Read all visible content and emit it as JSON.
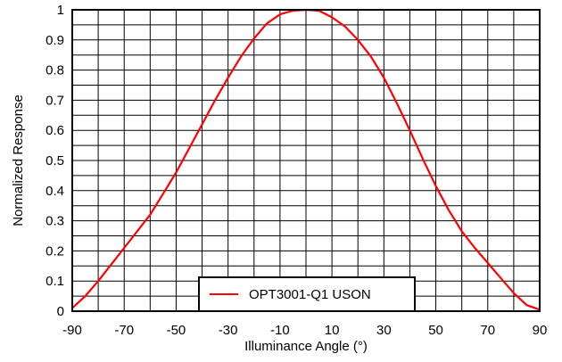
{
  "chart_data": {
    "type": "line",
    "xlabel": "Illuminance Angle (°)",
    "ylabel": "Normalized Response",
    "xlim": [
      -90,
      90
    ],
    "ylim": [
      0,
      1
    ],
    "grid": true,
    "x_ticks": [
      "-90",
      "-70",
      "-50",
      "-30",
      "-10",
      "10",
      "30",
      "50",
      "70",
      "90"
    ],
    "y_ticks": [
      "0",
      "0.1",
      "0.2",
      "0.3",
      "0.4",
      "0.5",
      "0.6",
      "0.7",
      "0.8",
      "0.9",
      "1"
    ],
    "legend_position": "bottom-center",
    "series": [
      {
        "name": "OPT3001-Q1 USON",
        "color": "#ff0000",
        "x": [
          -90,
          -85,
          -80,
          -75,
          -70,
          -65,
          -60,
          -55,
          -50,
          -45,
          -40,
          -35,
          -30,
          -25,
          -20,
          -15,
          -10,
          -5,
          0,
          5,
          10,
          15,
          20,
          25,
          30,
          35,
          40,
          45,
          50,
          55,
          60,
          65,
          70,
          75,
          80,
          85,
          90
        ],
        "y": [
          0.01,
          0.05,
          0.1,
          0.155,
          0.21,
          0.265,
          0.32,
          0.39,
          0.46,
          0.54,
          0.62,
          0.7,
          0.775,
          0.845,
          0.905,
          0.955,
          0.985,
          0.997,
          1.0,
          0.997,
          0.975,
          0.945,
          0.9,
          0.845,
          0.775,
          0.69,
          0.6,
          0.505,
          0.415,
          0.335,
          0.265,
          0.21,
          0.16,
          0.11,
          0.06,
          0.02,
          0.005
        ]
      }
    ]
  }
}
